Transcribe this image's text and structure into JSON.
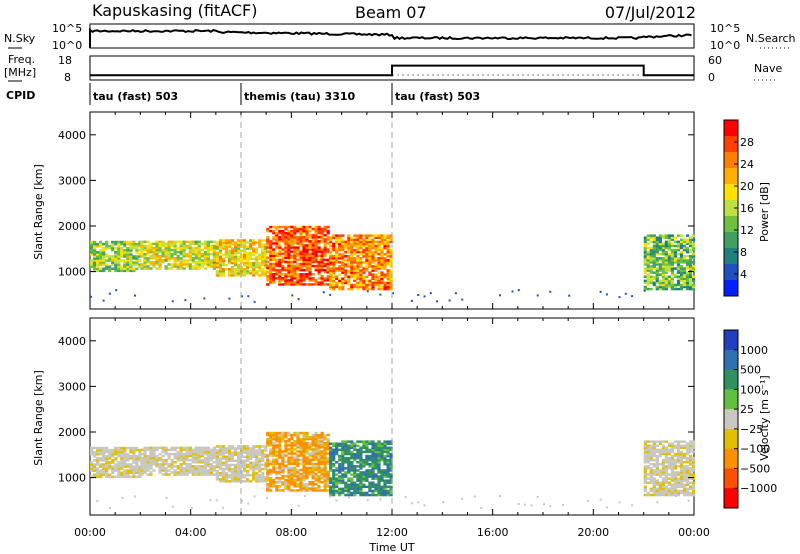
{
  "header": {
    "station": "Kapuskasing (fitACF)",
    "beam": "Beam 07",
    "date": "07/Jul/2012"
  },
  "noise_panel": {
    "left_label": "N.Sky",
    "right_label": "N.Search",
    "left_ticks": [
      "10^5",
      "10^0"
    ],
    "right_ticks": [
      "10^5",
      "10^0"
    ]
  },
  "freq_panel": {
    "left_label_1": "Freq.",
    "left_label_2": "[MHz]",
    "right_label": "Nave",
    "left_ticks": [
      "18",
      "8"
    ],
    "right_ticks": [
      "60",
      "0"
    ]
  },
  "cpid": {
    "label": "CPID",
    "segments": [
      {
        "text": "tau (fast) 503",
        "start_hour": 0,
        "end_hour": 6
      },
      {
        "text": "themis (tau) 3310",
        "start_hour": 6,
        "end_hour": 12
      },
      {
        "text": "tau (fast) 503",
        "start_hour": 12,
        "end_hour": 24
      }
    ]
  },
  "power_panel": {
    "ylabel": "Slant Range [km]",
    "colorbar_label": "Power [dB]",
    "colorbar_ticks": [
      "28",
      "24",
      "20",
      "16",
      "12",
      "8",
      "4"
    ],
    "colors": [
      "#ff0000",
      "#ff4000",
      "#ff8000",
      "#ffb000",
      "#ffe000",
      "#c0e040",
      "#70c040",
      "#40a060",
      "#208080",
      "#2050c0",
      "#0020ff"
    ]
  },
  "velocity_panel": {
    "ylabel": "Slant Range [km]",
    "colorbar_label": "Velocity [m s⁻¹]",
    "colorbar_ticks": [
      "1000",
      "500",
      "100",
      "25",
      "−25",
      "−100",
      "−500",
      "−1000"
    ],
    "colors": [
      "#2040c0",
      "#3070b0",
      "#309060",
      "#60c040",
      "#c8c8c0",
      "#e0c000",
      "#ff9000",
      "#ff5000",
      "#ff0000"
    ]
  },
  "xaxis": {
    "label": "Time UT",
    "ticks": [
      "00:00",
      "04:00",
      "08:00",
      "12:00",
      "16:00",
      "20:00",
      "00:00"
    ]
  },
  "chart_data": {
    "type": "heatmap",
    "title": "Kapuskasing (fitACF) Beam 07 07/Jul/2012",
    "xlabel": "Time UT",
    "ylabel": "Slant Range [km]",
    "x_ticks": [
      "00:00",
      "04:00",
      "08:00",
      "12:00",
      "16:00",
      "20:00",
      "00:00"
    ],
    "xlim_hours": [
      0,
      24
    ],
    "ylim_km": [
      180,
      4500
    ],
    "y_ticks": [
      1000,
      2000,
      3000,
      4000
    ],
    "mode_change_hours": [
      6,
      12
    ],
    "power_colorbar_db": [
      4,
      8,
      12,
      16,
      20,
      24,
      28
    ],
    "velocity_colorbar_ms": [
      -1000,
      -500,
      -100,
      -25,
      25,
      100,
      500,
      1000
    ],
    "nave_level_by_segment": [
      {
        "start_hour": 0,
        "end_hour": 12,
        "freq_mhz": 10
      },
      {
        "start_hour": 12,
        "end_hour": 22,
        "freq_mhz": 14
      },
      {
        "start_hour": 22,
        "end_hour": 24,
        "freq_mhz": 10
      }
    ],
    "echo_regions": [
      {
        "start_hour": 0.0,
        "end_hour": 2.0,
        "range_low_km": 1000,
        "range_high_km": 1650,
        "power_db": 14,
        "velocity_ms": -25
      },
      {
        "start_hour": 2.0,
        "end_hour": 5.0,
        "range_low_km": 1050,
        "range_high_km": 1650,
        "power_db": 16,
        "velocity_ms": -25
      },
      {
        "start_hour": 5.0,
        "end_hour": 7.0,
        "range_low_km": 900,
        "range_high_km": 1700,
        "power_db": 18,
        "velocity_ms": -50
      },
      {
        "start_hour": 7.0,
        "end_hour": 9.5,
        "range_low_km": 700,
        "range_high_km": 2000,
        "power_db": 24,
        "velocity_ms": -150
      },
      {
        "start_hour": 9.5,
        "end_hour": 12.0,
        "range_low_km": 600,
        "range_high_km": 1800,
        "power_db": 22,
        "velocity_ms": 200
      },
      {
        "start_hour": 22.0,
        "end_hour": 24.0,
        "range_low_km": 600,
        "range_high_km": 1800,
        "power_db": 12,
        "velocity_ms": -25
      }
    ]
  }
}
